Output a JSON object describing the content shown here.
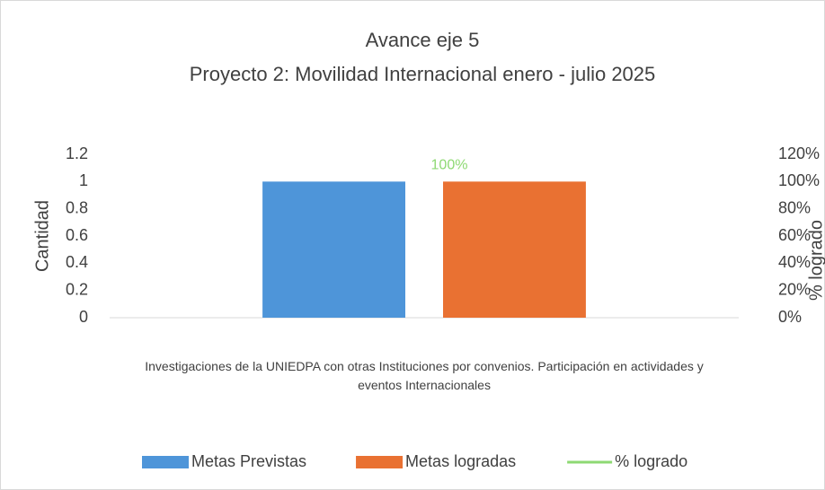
{
  "chart_data": {
    "type": "bar_line",
    "title": "Avance  eje 5",
    "subtitle": "Proyecto 2: Movilidad Internacional  enero - julio 2025",
    "categories": [
      "Investigaciones de la UNIEDPA con otras Instituciones por convenios. Participación en actividades y eventos Internacionales"
    ],
    "series": [
      {
        "name": "Metas Previstas",
        "color": "#4e95d9",
        "type": "bar",
        "values": [
          1
        ]
      },
      {
        "name": "Metas logradas",
        "color": "#e97132",
        "type": "bar",
        "values": [
          1
        ]
      },
      {
        "name": "% logrado",
        "color": "#8ed973",
        "type": "line",
        "axis": "y2",
        "values": [
          100
        ],
        "value_labels": [
          "100%"
        ]
      }
    ],
    "ylabel": "Cantidad",
    "y2label": "% logrado",
    "ylim": [
      0,
      1.2
    ],
    "yticks": [
      0,
      0.2,
      0.4,
      0.6,
      0.8,
      1,
      1.2
    ],
    "y2lim": [
      0,
      120
    ],
    "y2ticks": [
      {
        "value": 0,
        "label": "0%"
      },
      {
        "value": 20,
        "label": "20%"
      },
      {
        "value": 40,
        "label": "40%"
      },
      {
        "value": 60,
        "label": "60%"
      },
      {
        "value": 80,
        "label": "80%"
      },
      {
        "value": 100,
        "label": "100%"
      },
      {
        "value": 120,
        "label": "120%"
      }
    ],
    "legend": "bottom",
    "grid": false
  }
}
